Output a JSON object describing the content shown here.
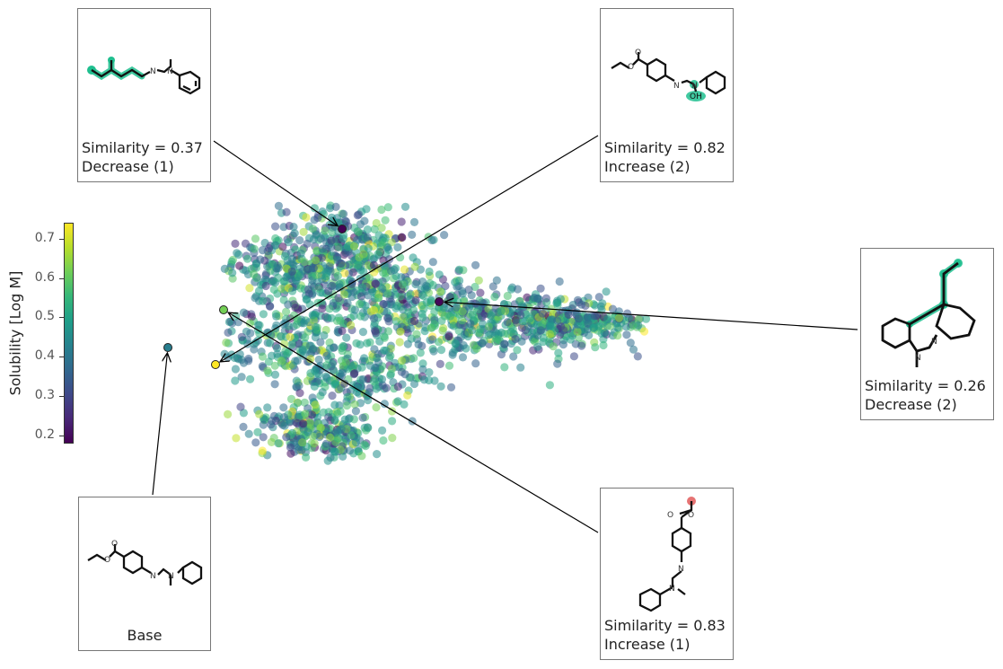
{
  "chart_data": {
    "type": "scatter",
    "title": "",
    "xlabel": "",
    "ylabel": "",
    "grid": false,
    "colormap": "viridis",
    "colorbar": {
      "label": "Solubility [Log M]",
      "range": [
        0.18,
        0.74
      ],
      "ticks": [
        "0.2",
        "0.3",
        "0.4",
        "0.5",
        "0.6",
        "0.7"
      ]
    },
    "background_cloud": {
      "point_count": 2000,
      "opacity": 0.55,
      "description_of_extent": "embedding space"
    },
    "highlighted_points": [
      {
        "id": "base",
        "label": "Base",
        "solubility": 0.42
      },
      {
        "id": "p1",
        "similarity": "0.37",
        "label": "Decrease (1)",
        "solubility": 0.18
      },
      {
        "id": "p2",
        "similarity": "0.82",
        "label": "Increase (2)",
        "solubility": 0.74
      },
      {
        "id": "p3",
        "similarity": "0.26",
        "label": "Decrease (2)",
        "solubility": 0.19
      },
      {
        "id": "p4",
        "similarity": "0.83",
        "label": "Increase (1)",
        "solubility": 0.62
      }
    ],
    "annotations": [
      {
        "id": "p1",
        "text_line1": "Similarity = 0.37",
        "text_line2": "Decrease (1)"
      },
      {
        "id": "p2",
        "text_line1": "Similarity = 0.82",
        "text_line2": "Increase (2)"
      },
      {
        "id": "p3",
        "text_line1": "Similarity = 0.26",
        "text_line2": "Decrease (2)"
      },
      {
        "id": "p4",
        "text_line1": "Similarity = 0.83",
        "text_line2": "Increase (1)"
      },
      {
        "id": "base",
        "text_line1": "Base",
        "text_line2": ""
      }
    ],
    "atom_labels": {
      "N": "N",
      "O": "O",
      "OH": "OH"
    },
    "colors": {
      "highlight_substructure": "#1fbf8f",
      "highlight_red": "#e05050",
      "box_border": "#777777",
      "arrow": "#000000"
    }
  }
}
